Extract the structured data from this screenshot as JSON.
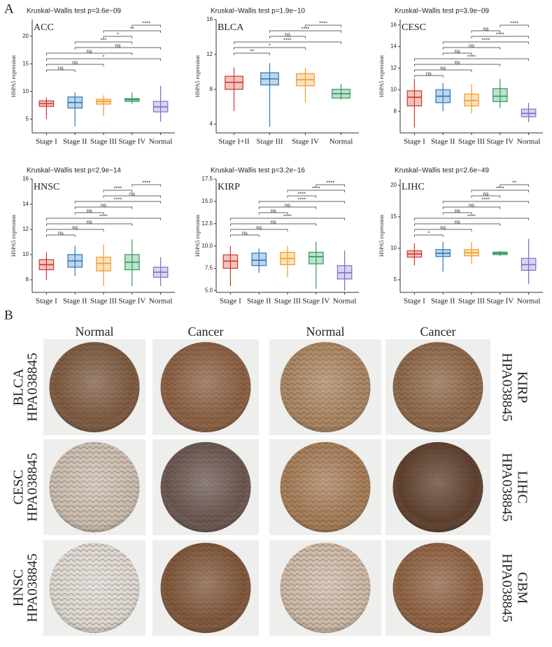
{
  "panel_labels": [
    "A",
    "B"
  ],
  "chart_data": [
    {
      "type": "box",
      "subtitle": "Kruskal−Wallis test p=3.6e−09",
      "title": "ACC",
      "y_label": "HSPA5 expression",
      "categories": [
        "Stage I",
        "Stage II",
        "Stage III",
        "Stage IV",
        "Normal"
      ],
      "colors": [
        "#cc3a2a",
        "#2a77b8",
        "#f09a26",
        "#2e9a5a",
        "#7d6fc9"
      ],
      "boxes": [
        {
          "min": 5.0,
          "q1": 7.3,
          "median": 7.8,
          "q3": 8.3,
          "max": 8.9
        },
        {
          "min": 3.7,
          "q1": 7.0,
          "median": 8.0,
          "q3": 9.0,
          "max": 9.8
        },
        {
          "min": 5.5,
          "q1": 7.7,
          "median": 8.2,
          "q3": 8.6,
          "max": 9.3
        },
        {
          "min": 7.8,
          "q1": 8.2,
          "median": 8.5,
          "q3": 8.7,
          "max": 9.8
        },
        {
          "min": 4.5,
          "q1": 6.3,
          "median": 7.2,
          "q3": 8.2,
          "max": 11.0
        }
      ],
      "ylim": [
        2.5,
        23
      ],
      "yticks": [
        5,
        10,
        15,
        20
      ],
      "brackets": [
        {
          "groups": [
            "Stage IV",
            "Normal"
          ],
          "label": "****"
        },
        {
          "groups": [
            "Stage III",
            "Normal"
          ],
          "label": "**"
        },
        {
          "groups": [
            "Stage III",
            "Stage IV"
          ],
          "label": "*"
        },
        {
          "groups": [
            "Stage II",
            "Stage IV"
          ],
          "label": "***"
        },
        {
          "groups": [
            "Stage II",
            "Normal"
          ],
          "label": "ns"
        },
        {
          "groups": [
            "Stage I",
            "Stage IV"
          ],
          "label": "ns"
        },
        {
          "groups": [
            "Stage I",
            "Normal"
          ],
          "label": "*"
        },
        {
          "groups": [
            "Stage I",
            "Stage III"
          ],
          "label": "ns"
        },
        {
          "groups": [
            "Stage I",
            "Stage II"
          ],
          "label": "ns"
        }
      ]
    },
    {
      "type": "box",
      "subtitle": "Kruskal−Wallis test p=1.9e−10",
      "title": "BLCA",
      "y_label": "HSPA5 expression",
      "categories": [
        "Stage I+II",
        "Stage III",
        "Stage IV",
        "Normal"
      ],
      "colors": [
        "#cc3a2a",
        "#2a77b8",
        "#f09a26",
        "#2e9a5a"
      ],
      "boxes": [
        {
          "min": 5.5,
          "q1": 8.0,
          "median": 8.8,
          "q3": 9.5,
          "max": 10.5
        },
        {
          "min": 3.7,
          "q1": 8.5,
          "median": 9.2,
          "q3": 9.9,
          "max": 11.0
        },
        {
          "min": 6.5,
          "q1": 8.4,
          "median": 9.1,
          "q3": 9.8,
          "max": 10.5
        },
        {
          "min": 6.8,
          "q1": 7.0,
          "median": 7.5,
          "q3": 8.0,
          "max": 8.6
        }
      ],
      "ylim": [
        3,
        16
      ],
      "yticks": [
        4,
        8,
        12,
        16
      ],
      "brackets": [
        {
          "groups": [
            "Stage IV",
            "Normal"
          ],
          "label": "****"
        },
        {
          "groups": [
            "Stage III",
            "Normal"
          ],
          "label": "****"
        },
        {
          "groups": [
            "Stage III",
            "Stage IV"
          ],
          "label": "ns"
        },
        {
          "groups": [
            "Stage I+II",
            "Normal"
          ],
          "label": "****"
        },
        {
          "groups": [
            "Stage I+II",
            "Stage IV"
          ],
          "label": "*"
        },
        {
          "groups": [
            "Stage I+II",
            "Stage III"
          ],
          "label": "**"
        }
      ]
    },
    {
      "type": "box",
      "subtitle": "Kruskal−Wallis test p=3.9e−09",
      "title": "CESC",
      "y_label": "HSPA5 expression",
      "categories": [
        "Stage I",
        "Stage II",
        "Stage III",
        "Stage IV",
        "Normal"
      ],
      "colors": [
        "#cc3a2a",
        "#2a77b8",
        "#f09a26",
        "#2e9a5a",
        "#7d6fc9"
      ],
      "boxes": [
        {
          "min": 6.5,
          "q1": 8.5,
          "median": 9.3,
          "q3": 9.9,
          "max": 11.0
        },
        {
          "min": 8.0,
          "q1": 8.8,
          "median": 9.4,
          "q3": 10.0,
          "max": 10.6
        },
        {
          "min": 7.8,
          "q1": 8.5,
          "median": 9.0,
          "q3": 9.6,
          "max": 10.5
        },
        {
          "min": 8.3,
          "q1": 8.9,
          "median": 9.4,
          "q3": 10.1,
          "max": 11.0
        },
        {
          "min": 7.0,
          "q1": 7.5,
          "median": 7.8,
          "q3": 8.2,
          "max": 8.8
        }
      ],
      "ylim": [
        6,
        16.5
      ],
      "yticks": [
        8,
        10,
        12,
        14,
        16
      ],
      "brackets": [
        {
          "groups": [
            "Stage IV",
            "Normal"
          ],
          "label": "****"
        },
        {
          "groups": [
            "Stage III",
            "Stage IV"
          ],
          "label": "ns"
        },
        {
          "groups": [
            "Stage III",
            "Normal"
          ],
          "label": "****"
        },
        {
          "groups": [
            "Stage II",
            "Normal"
          ],
          "label": "****"
        },
        {
          "groups": [
            "Stage II",
            "Stage IV"
          ],
          "label": "ns"
        },
        {
          "groups": [
            "Stage II",
            "Stage III"
          ],
          "label": "ns"
        },
        {
          "groups": [
            "Stage I",
            "Normal"
          ],
          "label": "****"
        },
        {
          "groups": [
            "Stage I",
            "Stage IV"
          ],
          "label": "ns"
        },
        {
          "groups": [
            "Stage I",
            "Stage III"
          ],
          "label": "ns"
        },
        {
          "groups": [
            "Stage I",
            "Stage II"
          ],
          "label": "ns"
        }
      ]
    },
    {
      "type": "box",
      "subtitle": "Kruskal−Wallis test p=2.9e−14",
      "title": "HNSC",
      "y_label": "HSPA5 expression",
      "categories": [
        "Stage I",
        "Stage II",
        "Stage III",
        "Stage IV",
        "Normal"
      ],
      "colors": [
        "#cc3a2a",
        "#2a77b8",
        "#f09a26",
        "#2e9a5a",
        "#7d6fc9"
      ],
      "boxes": [
        {
          "min": 8.0,
          "q1": 8.8,
          "median": 9.2,
          "q3": 9.6,
          "max": 10.2
        },
        {
          "min": 8.3,
          "q1": 9.0,
          "median": 9.5,
          "q3": 10.0,
          "max": 10.7
        },
        {
          "min": 7.5,
          "q1": 8.7,
          "median": 9.3,
          "q3": 9.8,
          "max": 10.8
        },
        {
          "min": 7.5,
          "q1": 8.8,
          "median": 9.4,
          "q3": 10.0,
          "max": 11.2
        },
        {
          "min": 7.5,
          "q1": 8.2,
          "median": 8.6,
          "q3": 9.0,
          "max": 9.8
        }
      ],
      "ylim": [
        7,
        16
      ],
      "yticks": [
        8,
        10,
        12,
        14,
        16
      ],
      "brackets": [
        {
          "groups": [
            "Stage IV",
            "Normal"
          ],
          "label": "****"
        },
        {
          "groups": [
            "Stage III",
            "Stage IV"
          ],
          "label": "****"
        },
        {
          "groups": [
            "Stage III",
            "Normal"
          ],
          "label": "ns"
        },
        {
          "groups": [
            "Stage II",
            "Normal"
          ],
          "label": "****"
        },
        {
          "groups": [
            "Stage II",
            "Stage IV"
          ],
          "label": "ns"
        },
        {
          "groups": [
            "Stage II",
            "Stage III"
          ],
          "label": "ns"
        },
        {
          "groups": [
            "Stage I",
            "Normal"
          ],
          "label": "****"
        },
        {
          "groups": [
            "Stage I",
            "Stage IV"
          ],
          "label": "ns"
        },
        {
          "groups": [
            "Stage I",
            "Stage III"
          ],
          "label": "ns"
        },
        {
          "groups": [
            "Stage I",
            "Stage II"
          ],
          "label": "ns"
        }
      ]
    },
    {
      "type": "box",
      "subtitle": "Kruskal−Wallis test p=3.2e−16",
      "title": "KIRP",
      "y_label": "HSPA5 expression",
      "categories": [
        "Stage I",
        "Stage II",
        "Stage III",
        "Stage IV",
        "Normal"
      ],
      "colors": [
        "#cc3a2a",
        "#2a77b8",
        "#f09a26",
        "#2e9a5a",
        "#7d6fc9"
      ],
      "boxes": [
        {
          "min": 5.5,
          "q1": 7.5,
          "median": 8.3,
          "q3": 9.0,
          "max": 10.0
        },
        {
          "min": 7.0,
          "q1": 7.8,
          "median": 8.4,
          "q3": 9.2,
          "max": 9.7
        },
        {
          "min": 6.5,
          "q1": 7.9,
          "median": 8.6,
          "q3": 9.3,
          "max": 10.0
        },
        {
          "min": 5.2,
          "q1": 8.0,
          "median": 8.8,
          "q3": 9.3,
          "max": 10.5
        },
        {
          "min": 5.0,
          "q1": 6.3,
          "median": 7.0,
          "q3": 7.8,
          "max": 9.5
        }
      ],
      "ylim": [
        4.8,
        17.5
      ],
      "yticks": [
        {
          "value": 5,
          "label": "5.0"
        },
        {
          "value": 7.5,
          "label": "7.5"
        },
        {
          "value": 10,
          "label": "10.0"
        },
        {
          "value": 12.5,
          "label": "12.5"
        },
        {
          "value": 15,
          "label": "15.0"
        },
        {
          "value": 17.5,
          "label": "17.5"
        }
      ],
      "brackets": [
        {
          "groups": [
            "Stage IV",
            "Normal"
          ],
          "label": "****"
        },
        {
          "groups": [
            "Stage III",
            "Normal"
          ],
          "label": "****"
        },
        {
          "groups": [
            "Stage III",
            "Stage IV"
          ],
          "label": "****"
        },
        {
          "groups": [
            "Stage II",
            "Normal"
          ],
          "label": "****"
        },
        {
          "groups": [
            "Stage II",
            "Stage IV"
          ],
          "label": "ns"
        },
        {
          "groups": [
            "Stage II",
            "Stage III"
          ],
          "label": "ns"
        },
        {
          "groups": [
            "Stage I",
            "Normal"
          ],
          "label": "****"
        },
        {
          "groups": [
            "Stage I",
            "Stage IV"
          ],
          "label": "ns"
        },
        {
          "groups": [
            "Stage I",
            "Stage III"
          ],
          "label": "ns"
        },
        {
          "groups": [
            "Stage I",
            "Stage II"
          ],
          "label": "ns"
        }
      ]
    },
    {
      "type": "box",
      "subtitle": "Kruskal−Wallis test p=2.6e−49",
      "title": "LIHC",
      "y_label": "HSPA5 expression",
      "categories": [
        "Stage I",
        "Stage II",
        "Stage III",
        "Stage IV",
        "Normal"
      ],
      "colors": [
        "#cc3a2a",
        "#2a77b8",
        "#f09a26",
        "#2e9a5a",
        "#7d6fc9"
      ],
      "boxes": [
        {
          "min": 7.3,
          "q1": 8.6,
          "median": 9.1,
          "q3": 9.6,
          "max": 10.8
        },
        {
          "min": 6.3,
          "q1": 8.7,
          "median": 9.2,
          "q3": 9.8,
          "max": 11.0
        },
        {
          "min": 7.5,
          "q1": 8.8,
          "median": 9.3,
          "q3": 9.8,
          "max": 11.0
        },
        {
          "min": 8.8,
          "q1": 9.0,
          "median": 9.2,
          "q3": 9.4,
          "max": 9.6
        },
        {
          "min": 4.3,
          "q1": 6.5,
          "median": 7.4,
          "q3": 8.4,
          "max": 11.5
        }
      ],
      "ylim": [
        3,
        21
      ],
      "yticks": [
        5,
        10,
        15,
        20
      ],
      "brackets": [
        {
          "groups": [
            "Stage IV",
            "Normal"
          ],
          "label": "**"
        },
        {
          "groups": [
            "Stage III",
            "Normal"
          ],
          "label": "****"
        },
        {
          "groups": [
            "Stage III",
            "Stage IV"
          ],
          "label": "ns"
        },
        {
          "groups": [
            "Stage II",
            "Normal"
          ],
          "label": "****"
        },
        {
          "groups": [
            "Stage II",
            "Stage IV"
          ],
          "label": "ns"
        },
        {
          "groups": [
            "Stage II",
            "Stage III"
          ],
          "label": "ns"
        },
        {
          "groups": [
            "Stage I",
            "Normal"
          ],
          "label": "****"
        },
        {
          "groups": [
            "Stage I",
            "Stage IV"
          ],
          "label": "ns"
        },
        {
          "groups": [
            "Stage I",
            "Stage III"
          ],
          "label": "ns"
        },
        {
          "groups": [
            "Stage I",
            "Stage II"
          ],
          "label": "*"
        }
      ]
    }
  ],
  "ihc": {
    "column_headers": [
      "Normal",
      "Cancer",
      "Normal",
      "Cancer"
    ],
    "left_labels": [
      {
        "tissue": "BLCA",
        "antibody": "HPA038845"
      },
      {
        "tissue": "CESC",
        "antibody": "HPA038845"
      },
      {
        "tissue": "HNSC",
        "antibody": "HPA038845"
      }
    ],
    "right_labels": [
      {
        "tissue": "KIRP",
        "antibody": "HPA038845"
      },
      {
        "tissue": "LIHC",
        "antibody": "HPA038845"
      },
      {
        "tissue": "GBM",
        "antibody": "HPA038845"
      }
    ]
  }
}
